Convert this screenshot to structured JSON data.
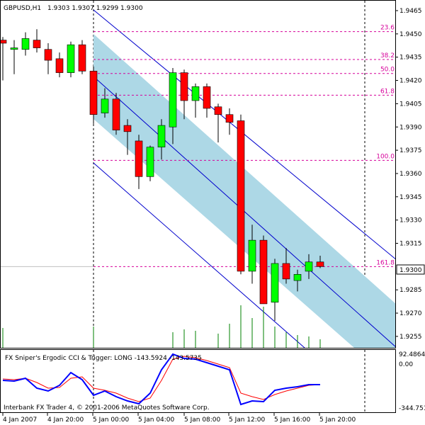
{
  "header": {
    "symbol": "GBPUSD,H1",
    "ohlc": "1.9303 1.9307 1.9299 1.9300"
  },
  "price_axis": {
    "labels": [
      "1.9465",
      "1.9450",
      "1.9435",
      "1.9420",
      "1.9405",
      "1.9390",
      "1.9375",
      "1.9360",
      "1.9345",
      "1.9330",
      "1.9315",
      "1.9285",
      "1.9270",
      "1.9255"
    ],
    "current_price": "1.9300"
  },
  "time_axis": {
    "labels": [
      "4 Jan 2007",
      "4 Jan 20:00",
      "5 Jan 00:00",
      "5 Jan 04:00",
      "5 Jan 08:00",
      "5 Jan 12:00",
      "5 Jan 16:00",
      "5 Jan 20:00"
    ]
  },
  "fib_levels": [
    {
      "label": "23.6",
      "price": 1.94515
    },
    {
      "label": "38.2",
      "price": 1.94335
    },
    {
      "label": "50.0",
      "price": 1.94245
    },
    {
      "label": "61.8",
      "price": 1.94105
    },
    {
      "label": "100.0",
      "price": 1.93685
    },
    {
      "label": "161.8",
      "price": 1.93
    }
  ],
  "indicator": {
    "title": "FX Sniper's Ergodic CCI & Trigger: LONG -143.5924 -143.5735",
    "axis_labels": [
      "92.4864",
      "0.00",
      "-344.751"
    ]
  },
  "footer": {
    "copyright": "Interbank FX Trader 4, © 2001-2006 MetaQuotes Software Corp."
  },
  "colors": {
    "bull": "#00ff00",
    "bear": "#ff0000",
    "channel_fill": "#add8e6",
    "channel_line": "#0000cd",
    "fib": "#d6009a",
    "volume": "#008000",
    "cci": "#0000ff",
    "trigger": "#ff0000"
  },
  "chart_data": {
    "type": "candlestick",
    "title": "GBPUSD,H1",
    "ylim": [
      1.9245,
      1.9472
    ],
    "x_tick_labels": [
      "4 Jan 2007",
      "4 Jan 20:00",
      "5 Jan 00:00",
      "5 Jan 04:00",
      "5 Jan 08:00",
      "5 Jan 12:00",
      "5 Jan 16:00",
      "5 Jan 20:00"
    ],
    "candles": [
      {
        "o": 1.9446,
        "h": 1.9448,
        "l": 1.942,
        "c": 1.9444
      },
      {
        "o": 1.944,
        "h": 1.9446,
        "l": 1.9424,
        "c": 1.9441
      },
      {
        "o": 1.944,
        "h": 1.9451,
        "l": 1.9436,
        "c": 1.9447
      },
      {
        "o": 1.9446,
        "h": 1.9453,
        "l": 1.9438,
        "c": 1.9441
      },
      {
        "o": 1.944,
        "h": 1.9444,
        "l": 1.9424,
        "c": 1.9433
      },
      {
        "o": 1.9434,
        "h": 1.9438,
        "l": 1.9422,
        "c": 1.9425
      },
      {
        "o": 1.9425,
        "h": 1.9445,
        "l": 1.9422,
        "c": 1.9443
      },
      {
        "o": 1.9443,
        "h": 1.9446,
        "l": 1.9424,
        "c": 1.9426
      },
      {
        "o": 1.9426,
        "h": 1.9429,
        "l": 1.9392,
        "c": 1.9398
      },
      {
        "o": 1.9399,
        "h": 1.9415,
        "l": 1.9396,
        "c": 1.9408
      },
      {
        "o": 1.9408,
        "h": 1.9412,
        "l": 1.9385,
        "c": 1.9388
      },
      {
        "o": 1.9391,
        "h": 1.9395,
        "l": 1.9372,
        "c": 1.9387
      },
      {
        "o": 1.9381,
        "h": 1.9385,
        "l": 1.935,
        "c": 1.9358
      },
      {
        "o": 1.9358,
        "h": 1.9378,
        "l": 1.9355,
        "c": 1.9377
      },
      {
        "o": 1.9377,
        "h": 1.9395,
        "l": 1.9369,
        "c": 1.9391
      },
      {
        "o": 1.939,
        "h": 1.9428,
        "l": 1.9379,
        "c": 1.9425
      },
      {
        "o": 1.9425,
        "h": 1.9427,
        "l": 1.9395,
        "c": 1.9407
      },
      {
        "o": 1.9407,
        "h": 1.9418,
        "l": 1.9396,
        "c": 1.9416
      },
      {
        "o": 1.9416,
        "h": 1.9418,
        "l": 1.9396,
        "c": 1.9402
      },
      {
        "o": 1.9403,
        "h": 1.9405,
        "l": 1.938,
        "c": 1.9398
      },
      {
        "o": 1.9398,
        "h": 1.9402,
        "l": 1.9385,
        "c": 1.9393
      },
      {
        "o": 1.9394,
        "h": 1.9398,
        "l": 1.9295,
        "c": 1.9297
      },
      {
        "o": 1.9297,
        "h": 1.9327,
        "l": 1.9289,
        "c": 1.9317
      },
      {
        "o": 1.9317,
        "h": 1.932,
        "l": 1.9276,
        "c": 1.9276
      },
      {
        "o": 1.9277,
        "h": 1.9305,
        "l": 1.9265,
        "c": 1.9302
      },
      {
        "o": 1.9302,
        "h": 1.9312,
        "l": 1.9289,
        "c": 1.9292
      },
      {
        "o": 1.9291,
        "h": 1.9298,
        "l": 1.9284,
        "c": 1.9295
      },
      {
        "o": 1.9297,
        "h": 1.9308,
        "l": 1.9292,
        "c": 1.9303
      },
      {
        "o": 1.9303,
        "h": 1.9307,
        "l": 1.9299,
        "c": 1.93
      }
    ]
  }
}
